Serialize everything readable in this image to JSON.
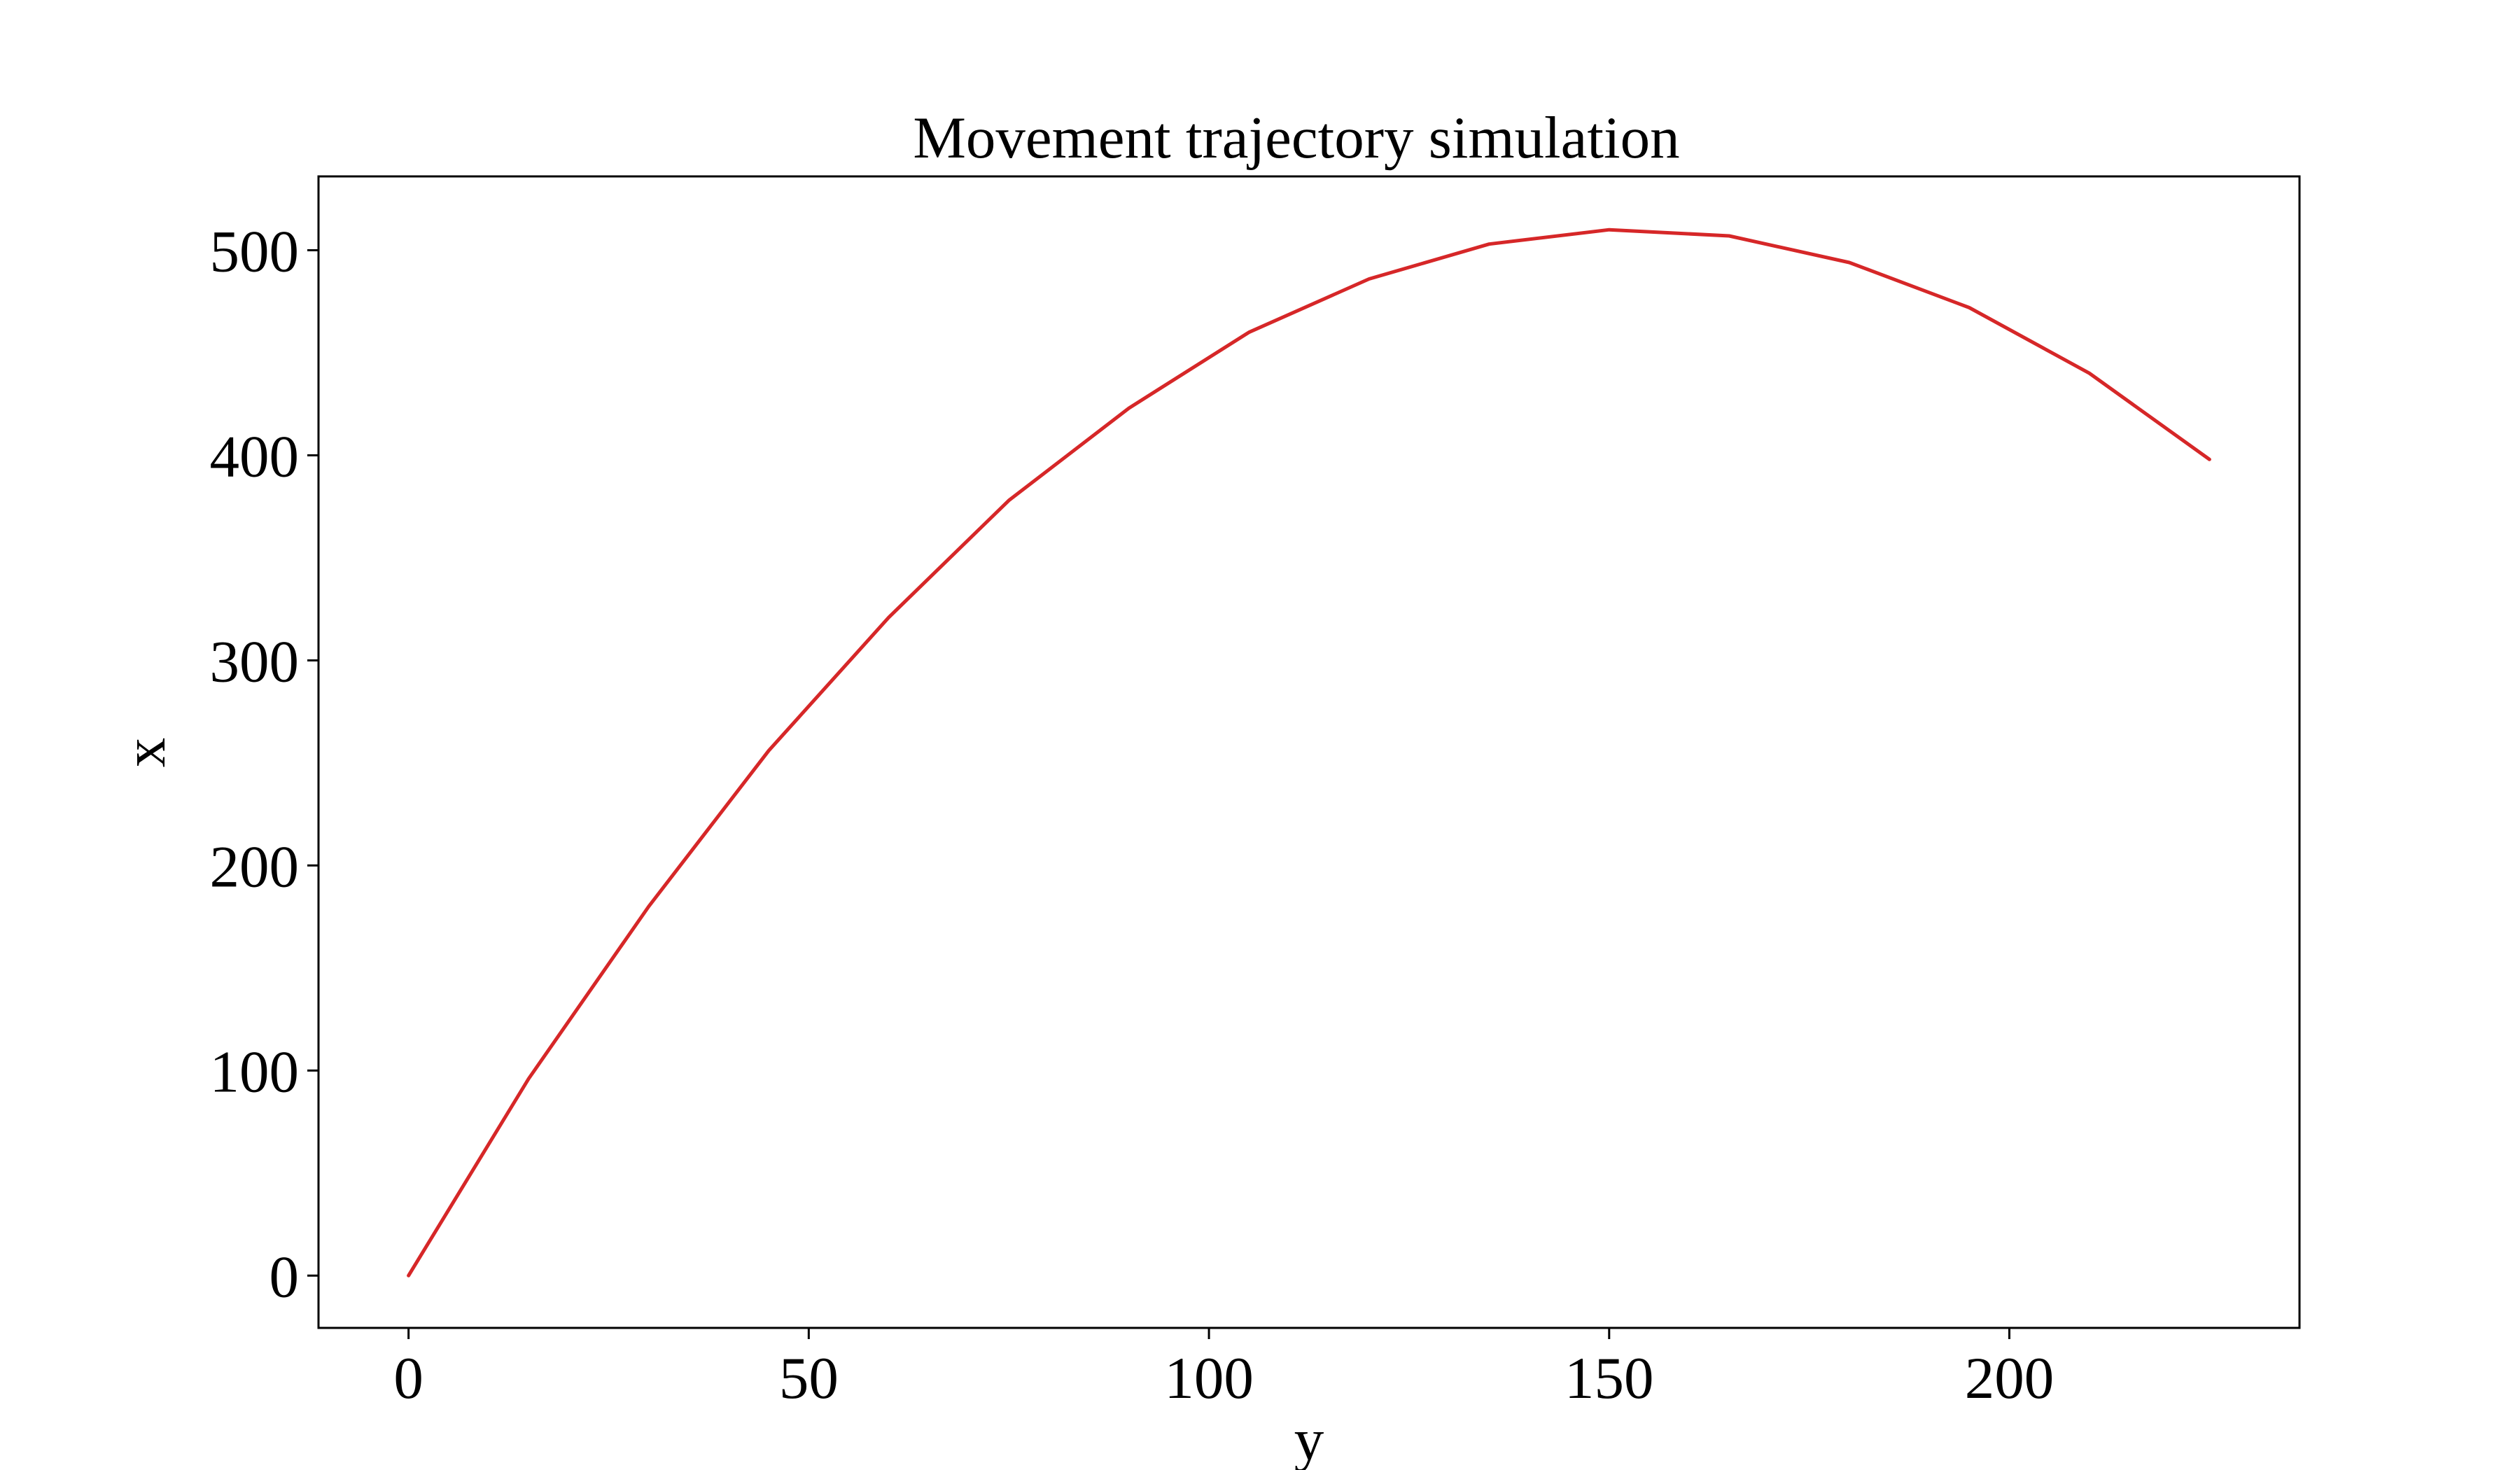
{
  "chart_data": {
    "type": "line",
    "title": "Movement trajectory simulation",
    "xlabel": "y",
    "ylabel": "x",
    "xlim": [
      -11.25,
      236.25
    ],
    "ylim": [
      -25.5,
      536
    ],
    "xticks": [
      0,
      50,
      100,
      150,
      200
    ],
    "yticks": [
      0,
      100,
      200,
      300,
      400,
      500
    ],
    "grid": false,
    "line_color": "#d62728",
    "series": [
      {
        "x": [
          0,
          15,
          30,
          45,
          60,
          75,
          90,
          105,
          120,
          135,
          150,
          165,
          180,
          195,
          210,
          225
        ],
        "y": [
          0,
          96,
          180,
          256,
          321,
          378,
          423,
          460,
          486,
          503,
          510,
          507,
          494,
          472,
          440,
          398
        ]
      }
    ]
  }
}
